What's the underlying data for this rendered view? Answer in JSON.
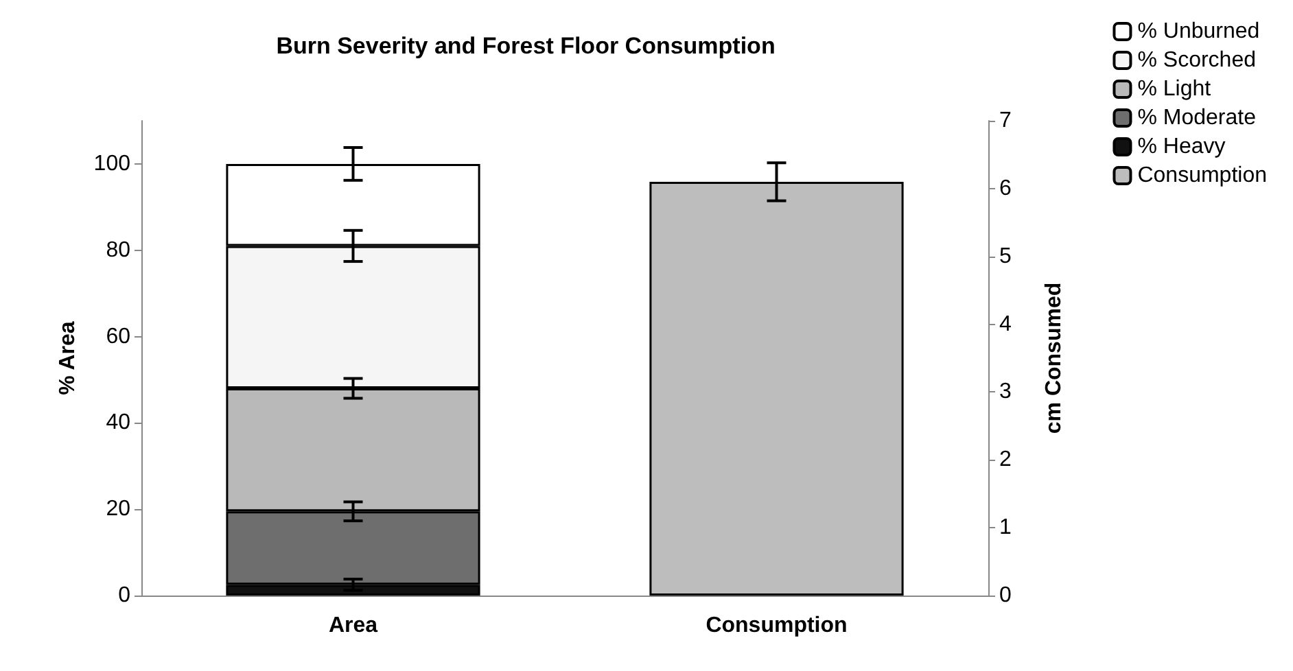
{
  "chart_data": {
    "type": "bar",
    "title": "Burn Severity and Forest Floor Consumption",
    "ylabel": "% Area",
    "y2label": "cm Consumed",
    "categories": [
      "Area",
      "Consumption"
    ],
    "stacked": true,
    "series": [
      {
        "name": "% Heavy",
        "color": "#111111",
        "values": [
          2.5,
          null
        ],
        "errors": [
          1.3,
          null
        ]
      },
      {
        "name": "% Moderate",
        "color": "#6e6e6e",
        "values": [
          17,
          null
        ],
        "errors": [
          2.2,
          null
        ]
      },
      {
        "name": "% Light",
        "color": "#b9b9b9",
        "values": [
          28.5,
          null
        ],
        "errors": [
          2.3,
          null
        ]
      },
      {
        "name": "% Scorched",
        "color": "#f5f5f5",
        "values": [
          33,
          null
        ],
        "errors": [
          3.6,
          null
        ]
      },
      {
        "name": "% Unburned",
        "color": "#ffffff",
        "values": [
          19,
          null
        ],
        "errors": [
          3.8,
          null
        ]
      },
      {
        "name": "Consumption",
        "color": "#bdbdbd",
        "axis": "y2",
        "values": [
          null,
          6.1
        ],
        "errors": [
          null,
          0.28
        ]
      }
    ],
    "ylim": [
      0,
      110
    ],
    "yticks": [
      0,
      20,
      40,
      60,
      80,
      100
    ],
    "y2lim": [
      0,
      7
    ],
    "y2ticks": [
      0,
      1,
      2,
      3,
      4,
      5,
      6,
      7
    ],
    "grid": false,
    "legend": "top right"
  }
}
